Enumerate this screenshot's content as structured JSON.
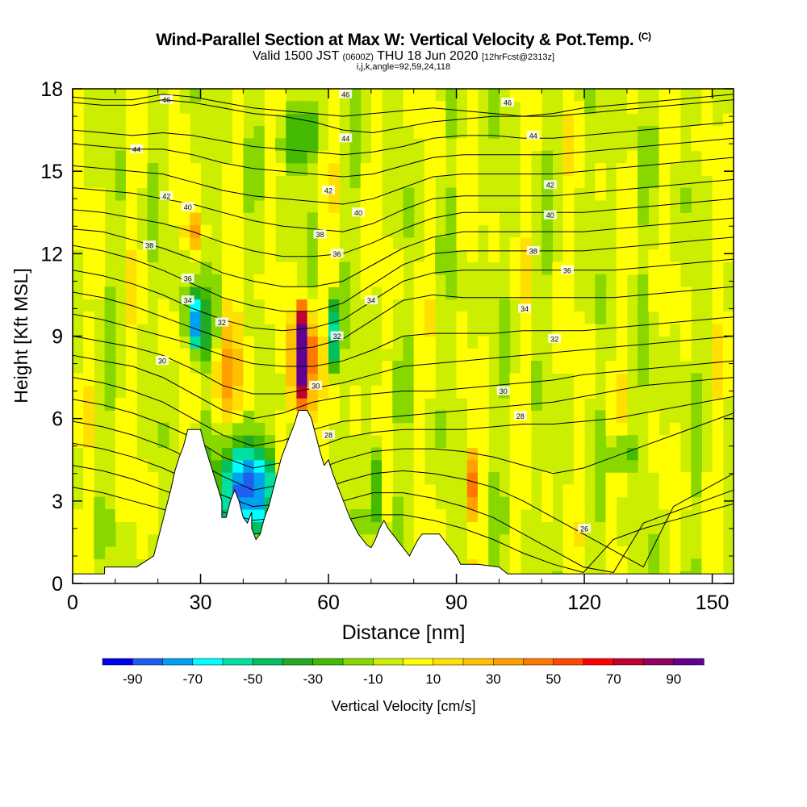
{
  "titles": {
    "main": "Wind-Parallel Section at Max W: Vertical Velocity & Pot.Temp.",
    "main_suffix": "(C)",
    "valid_prefix": "Valid 1500 JST",
    "valid_utc": "(0600Z)",
    "valid_date": "THU 18 Jun 2020",
    "forecast": "[12hrFcst@2313z]",
    "indices": "i,j,k,angle=92,59,24,118"
  },
  "chart_data": {
    "type": "heatmap",
    "xlabel": "Distance [nm]",
    "ylabel": "Height [Kft MSL]",
    "xlim": [
      0,
      155
    ],
    "ylim": [
      0,
      18
    ],
    "x_ticks": [
      0,
      30,
      60,
      90,
      120,
      150
    ],
    "y_ticks": [
      0,
      3,
      6,
      9,
      12,
      15,
      18
    ],
    "colorbar": {
      "label": "Vertical Velocity [cm/s]",
      "tick_labels": [
        -90,
        -70,
        -50,
        -30,
        -10,
        10,
        30,
        50,
        70,
        90
      ],
      "bins": [
        -100,
        -90,
        -80,
        -70,
        -60,
        -50,
        -40,
        -30,
        -20,
        -10,
        0,
        10,
        20,
        30,
        40,
        50,
        60,
        70,
        80,
        90,
        100
      ],
      "colors": [
        "#0000f0",
        "#1e5ff0",
        "#00a0f0",
        "#00ffff",
        "#00e0a0",
        "#00c060",
        "#22aa22",
        "#44bb00",
        "#88d800",
        "#ccee00",
        "#ffff00",
        "#ffe000",
        "#ffc000",
        "#ffa000",
        "#ff7800",
        "#ff4800",
        "#ff0000",
        "#c00030",
        "#900060",
        "#600090"
      ]
    },
    "terrain": [
      [
        0,
        0.35
      ],
      [
        7.5,
        0.35
      ],
      [
        7.5,
        0.6
      ],
      [
        15,
        0.6
      ],
      [
        19,
        1.0
      ],
      [
        20,
        1.6
      ],
      [
        21,
        2.2
      ],
      [
        22,
        2.8
      ],
      [
        23,
        3.4
      ],
      [
        24,
        4.1
      ],
      [
        25,
        4.6
      ],
      [
        26,
        5.0
      ],
      [
        27,
        5.6
      ],
      [
        30,
        5.6
      ],
      [
        31,
        5.0
      ],
      [
        32,
        4.5
      ],
      [
        33,
        4.0
      ],
      [
        34,
        3.5
      ],
      [
        35,
        3.0
      ],
      [
        35,
        2.4
      ],
      [
        36,
        2.4
      ],
      [
        37,
        3.0
      ],
      [
        38,
        3.4
      ],
      [
        39,
        3.0
      ],
      [
        40,
        2.4
      ],
      [
        41,
        2.2
      ],
      [
        42,
        2.6
      ],
      [
        42,
        2.0
      ],
      [
        43,
        1.6
      ],
      [
        44,
        1.8
      ],
      [
        45,
        2.4
      ],
      [
        46,
        2.8
      ],
      [
        47,
        3.4
      ],
      [
        48,
        4.0
      ],
      [
        49,
        4.6
      ],
      [
        50,
        5.0
      ],
      [
        51,
        5.4
      ],
      [
        52,
        5.8
      ],
      [
        53,
        6.3
      ],
      [
        55,
        6.3
      ],
      [
        56,
        6.0
      ],
      [
        57,
        5.4
      ],
      [
        58,
        4.8
      ],
      [
        59,
        4.3
      ],
      [
        60,
        4.5
      ],
      [
        61,
        4.0
      ],
      [
        62,
        3.6
      ],
      [
        63,
        3.2
      ],
      [
        64,
        2.8
      ],
      [
        65,
        2.4
      ],
      [
        66,
        2.1
      ],
      [
        67,
        1.8
      ],
      [
        68,
        1.6
      ],
      [
        69,
        1.4
      ],
      [
        70,
        1.3
      ],
      [
        71,
        1.6
      ],
      [
        72,
        2.0
      ],
      [
        73,
        2.3
      ],
      [
        74,
        2.0
      ],
      [
        75,
        1.8
      ],
      [
        76,
        1.6
      ],
      [
        77,
        1.4
      ],
      [
        78,
        1.2
      ],
      [
        79,
        1.0
      ],
      [
        80,
        1.3
      ],
      [
        81,
        1.6
      ],
      [
        82,
        1.8
      ],
      [
        86,
        1.8
      ],
      [
        87,
        1.6
      ],
      [
        88,
        1.4
      ],
      [
        89,
        1.2
      ],
      [
        90,
        1.0
      ],
      [
        91,
        0.7
      ],
      [
        95,
        0.7
      ],
      [
        100,
        0.6
      ],
      [
        102,
        0.35
      ],
      [
        155,
        0.35
      ]
    ],
    "features": [
      {
        "x": [
          53,
          56
        ],
        "y": [
          6.5,
          10.2
        ],
        "w": -0.0,
        "peak": 100
      },
      {
        "x": [
          51,
          58
        ],
        "y": [
          5.5,
          10.5
        ],
        "peak": 45
      },
      {
        "x": [
          59.5,
          62
        ],
        "y": [
          7.5,
          10.6
        ],
        "peak": -60
      },
      {
        "x": [
          27,
          30
        ],
        "y": [
          8.5,
          10.5
        ],
        "peak": -55
      },
      {
        "x": [
          25,
          34
        ],
        "y": [
          8,
          11
        ],
        "peak": -25
      },
      {
        "x": [
          35,
          48
        ],
        "y": [
          2,
          5
        ],
        "peak": -55
      },
      {
        "x": [
          31,
          47
        ],
        "y": [
          1.5,
          6
        ],
        "peak": -30
      },
      {
        "x": [
          92,
          95
        ],
        "y": [
          2.3,
          5
        ],
        "peak": 45
      },
      {
        "x": [
          26,
          31
        ],
        "y": [
          12,
          13.5
        ],
        "peak": 35
      },
      {
        "x": [
          33,
          42
        ],
        "y": [
          6,
          10
        ],
        "peak": 28
      },
      {
        "x": [
          70,
          73
        ],
        "y": [
          1.8,
          5
        ],
        "peak": -35
      },
      {
        "x": [
          125,
          133
        ],
        "y": [
          4,
          5.5
        ],
        "peak": -25
      },
      {
        "x": [
          48,
          58
        ],
        "y": [
          15,
          17.5
        ],
        "peak": -30
      }
    ],
    "isentropes": [
      {
        "label": "46",
        "y": [
          17.7,
          17.6,
          17.6,
          17.8,
          17.7,
          17.5,
          17.3,
          17.2,
          17.1,
          17.0,
          17.1,
          17.2,
          17.3,
          17.2,
          17.1,
          17.0,
          17.1,
          17.3,
          17.4,
          17.5,
          17.6,
          17.7,
          17.8
        ],
        "label_at": [
          22,
          17.6
        ],
        "label2_at": [
          64,
          17.8
        ]
      },
      {
        "label": "46",
        "y": [
          17.5,
          17.4,
          17.4,
          17.6,
          17.5,
          17.3,
          17.1,
          17.0,
          16.8,
          16.5,
          16.4,
          16.6,
          16.8,
          16.9,
          17.0,
          17.0,
          17.0,
          17.1,
          17.2,
          17.3,
          17.4,
          17.5,
          17.6
        ],
        "label_at": [
          102,
          17.5
        ]
      },
      {
        "label": "44",
        "y": [
          16.5,
          16.4,
          16.3,
          16.4,
          16.3,
          16.1,
          15.9,
          15.8,
          15.7,
          15.6,
          15.7,
          15.9,
          16.2,
          16.3,
          16.3,
          16.2,
          16.2,
          16.3,
          16.4,
          16.5,
          16.6,
          16.7,
          16.8
        ],
        "label_at": [
          15,
          15.8
        ],
        "label2_at": [
          64,
          16.2
        ],
        "label3_at": [
          108,
          16.3
        ]
      },
      {
        "label": "",
        "y": [
          16.0,
          15.9,
          15.8,
          15.8,
          15.6,
          15.3,
          15.1,
          15.0,
          14.9,
          14.8,
          14.9,
          15.2,
          15.5,
          15.6,
          15.6,
          15.6,
          15.6,
          15.7,
          15.8,
          15.9,
          16.0,
          16.1,
          16.2
        ]
      },
      {
        "label": "",
        "y": [
          15.2,
          15.1,
          15.0,
          14.9,
          14.6,
          14.3,
          14.1,
          14.0,
          13.9,
          13.8,
          14.0,
          14.4,
          14.8,
          14.9,
          14.9,
          14.9,
          14.9,
          15.0,
          15.1,
          15.2,
          15.3,
          15.4,
          15.5
        ]
      },
      {
        "label": "42",
        "y": [
          14.4,
          14.3,
          14.2,
          14.0,
          13.8,
          13.5,
          13.2,
          13.0,
          12.9,
          12.8,
          13.1,
          13.6,
          14.0,
          14.1,
          14.1,
          14.1,
          14.1,
          14.2,
          14.3,
          14.4,
          14.5,
          14.6,
          14.7
        ],
        "label_at": [
          22,
          14.1
        ],
        "label2_at": [
          60,
          14.3
        ],
        "label3_at": [
          112,
          14.5
        ]
      },
      {
        "label": "40",
        "y": [
          13.6,
          13.5,
          13.3,
          13.1,
          12.8,
          12.4,
          12.1,
          11.9,
          11.9,
          12.0,
          12.4,
          12.9,
          13.3,
          13.5,
          13.5,
          13.5,
          13.5,
          13.5,
          13.6,
          13.7,
          13.8,
          13.9,
          14.0
        ],
        "label_at": [
          27,
          13.7
        ],
        "label2_at": [
          67,
          13.5
        ],
        "label3_at": [
          112,
          13.4
        ]
      },
      {
        "label": "",
        "y": [
          12.9,
          12.8,
          12.5,
          12.2,
          11.8,
          11.3,
          11.0,
          10.8,
          10.8,
          11.0,
          11.6,
          12.2,
          12.6,
          12.8,
          12.8,
          12.8,
          12.8,
          12.8,
          12.9,
          13.0,
          13.1,
          13.2,
          13.3
        ]
      },
      {
        "label": "38",
        "y": [
          12.3,
          12.1,
          11.8,
          11.4,
          10.9,
          10.4,
          10.1,
          9.9,
          9.9,
          10.2,
          10.9,
          11.6,
          12.0,
          12.1,
          12.1,
          12.1,
          12.1,
          12.1,
          12.2,
          12.3,
          12.4,
          12.5,
          12.6
        ],
        "label_at": [
          18,
          12.3
        ],
        "label2_at": [
          58,
          12.7
        ],
        "label3_at": [
          108,
          12.1
        ]
      },
      {
        "label": "36",
        "y": [
          11.4,
          11.2,
          10.9,
          10.5,
          10.0,
          9.6,
          9.3,
          9.2,
          9.3,
          9.6,
          10.3,
          11.0,
          11.3,
          11.4,
          11.4,
          11.4,
          11.4,
          11.4,
          11.4,
          11.5,
          11.6,
          11.7,
          11.8
        ],
        "label_at": [
          27,
          11.1
        ],
        "label2_at": [
          62,
          12.0
        ],
        "label3_at": [
          116,
          11.4
        ]
      },
      {
        "label": "34",
        "y": [
          10.6,
          10.4,
          10.1,
          9.7,
          9.3,
          8.9,
          8.6,
          8.5,
          8.6,
          8.9,
          9.6,
          10.3,
          10.5,
          10.4,
          10.4,
          10.4,
          10.4,
          10.4,
          10.4,
          10.5,
          10.6,
          10.7,
          10.8
        ],
        "label_at": [
          27,
          10.3
        ],
        "label2_at": [
          70,
          10.3
        ],
        "label3_at": [
          106,
          10.0
        ]
      },
      {
        "label": "32",
        "y": [
          9.8,
          9.6,
          9.3,
          9.0,
          8.7,
          8.3,
          8.0,
          7.9,
          7.9,
          8.1,
          8.5,
          9.0,
          9.1,
          9.1,
          9.1,
          9.2,
          9.2,
          9.2,
          9.3,
          9.4,
          9.5,
          9.6,
          9.7
        ],
        "label_at": [
          35,
          9.5
        ],
        "label2_at": [
          62,
          9.0
        ],
        "label3_at": [
          113,
          8.9
        ]
      },
      {
        "label": "",
        "y": [
          9.0,
          8.8,
          8.6,
          8.3,
          7.8,
          7.2,
          6.9,
          6.9,
          7.1,
          7.3,
          7.6,
          7.9,
          8.0,
          8.1,
          8.2,
          8.3,
          8.4,
          8.5,
          8.6,
          8.7,
          8.8,
          8.9,
          9.0
        ]
      },
      {
        "label": "30",
        "y": [
          8.3,
          8.1,
          7.9,
          7.5,
          6.9,
          6.3,
          6.0,
          6.2,
          6.6,
          6.8,
          6.9,
          7.0,
          7.0,
          7.1,
          7.2,
          7.3,
          7.4,
          7.6,
          7.7,
          7.8,
          7.9,
          8.0,
          8.1
        ],
        "label_at": [
          21,
          8.1
        ],
        "label2_at": [
          57,
          7.2
        ],
        "label3_at": [
          101,
          7.0
        ]
      },
      {
        "label": "",
        "y": [
          7.5,
          7.3,
          7.0,
          6.6,
          6.0,
          5.4,
          5.0,
          5.2,
          5.6,
          5.9,
          6.0,
          6.1,
          6.2,
          6.3,
          6.4,
          6.5,
          6.6,
          6.8,
          7.0,
          7.2,
          7.3,
          7.4,
          7.5
        ]
      },
      {
        "label": "28",
        "y": [
          6.7,
          6.5,
          6.2,
          5.8,
          5.3,
          4.6,
          4.2,
          4.4,
          4.9,
          5.3,
          5.5,
          5.6,
          5.6,
          5.6,
          5.7,
          5.8,
          5.8,
          5.9,
          6.0,
          6.2,
          6.4,
          6.6,
          6.8
        ],
        "label_at": [
          60,
          5.4
        ],
        "label2_at": [
          105,
          6.1
        ]
      },
      {
        "label": "",
        "y": [
          5.9,
          5.7,
          5.4,
          5.0,
          4.5,
          3.9,
          3.4,
          3.6,
          4.1,
          4.5,
          4.8,
          4.9,
          4.9,
          4.8,
          4.6,
          4.3,
          4.0,
          4.2,
          4.6,
          5.0,
          5.4,
          5.8,
          6.2
        ]
      },
      {
        "label": "26",
        "y": [
          5.1,
          4.9,
          4.6,
          4.2,
          3.7,
          3.2,
          2.8,
          2.9,
          3.3,
          3.7,
          4.0,
          4.1,
          4.0,
          3.8,
          3.5,
          3.0,
          2.4,
          1.8,
          1.2,
          0.6,
          2.8,
          3.4,
          4.0
        ],
        "label_at": [
          120,
          2.0
        ]
      },
      {
        "label": "",
        "y": [
          4.3,
          4.1,
          3.8,
          3.4,
          3.0,
          2.6,
          2.3,
          2.4,
          2.7,
          3.0,
          3.3,
          3.3,
          3.1,
          2.8,
          2.4,
          1.8,
          1.2,
          0.6,
          0.4,
          2.2,
          2.6,
          3.0,
          3.4
        ]
      },
      {
        "label": "",
        "y": [
          3.5,
          3.3,
          3.0,
          2.7,
          2.3,
          2.0,
          1.8,
          1.9,
          2.1,
          2.3,
          2.5,
          2.5,
          2.3,
          2.0,
          1.6,
          1.1,
          0.7,
          0.4,
          1.6,
          2.0,
          2.3,
          2.6,
          2.9
        ]
      }
    ]
  }
}
